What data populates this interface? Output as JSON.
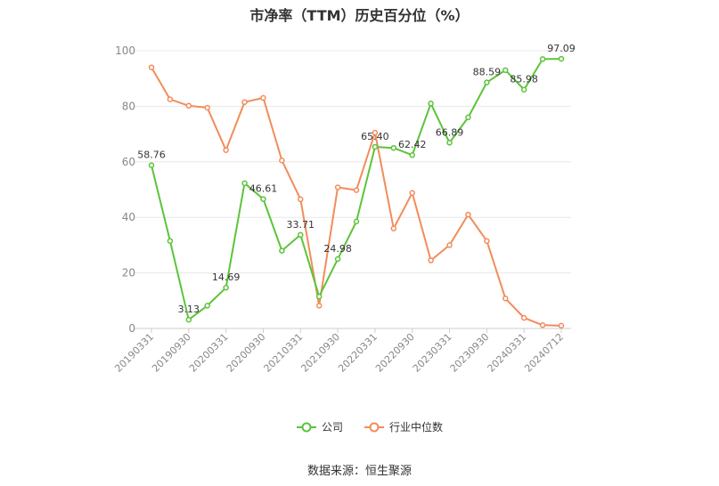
{
  "chart_data": {
    "type": "line",
    "title": "市净率（TTM）历史百分位（%）",
    "xlabel": "",
    "ylabel": "",
    "ylim": [
      0,
      100
    ],
    "yticks": [
      0,
      20,
      40,
      60,
      80,
      100
    ],
    "x": [
      "20190331",
      "20190630",
      "20190930",
      "20191231",
      "20200331",
      "20200630",
      "20200930",
      "20201231",
      "20210331",
      "20210630",
      "20210930",
      "20211231",
      "20220331",
      "20220630",
      "20220930",
      "20221231",
      "20230331",
      "20230630",
      "20230930",
      "20231231",
      "20240331",
      "20240630",
      "20240712"
    ],
    "xtick_labels": [
      "20190331",
      "20190930",
      "20200331",
      "20200930",
      "20210331",
      "20210930",
      "20220331",
      "20220930",
      "20230331",
      "20230930",
      "20240331",
      "20240712"
    ],
    "grid": true,
    "legend_position": "bottom",
    "series": [
      {
        "name": "公司",
        "color": "#5cc43a",
        "values": [
          58.76,
          31.5,
          3.13,
          8.2,
          14.69,
          52.3,
          46.61,
          28.0,
          33.71,
          11.5,
          24.98,
          38.5,
          65.4,
          65.0,
          62.42,
          81.0,
          66.89,
          76.0,
          88.59,
          93.0,
          85.98,
          97.0,
          97.09
        ],
        "data_labels": {
          "0": "58.76",
          "2": "3.13",
          "4": "14.69",
          "6": "46.61",
          "8": "33.71",
          "10": "24.98",
          "12": "65.40",
          "14": "62.42",
          "16": "66.89",
          "18": "88.59",
          "20": "85.98",
          "22": "97.09"
        }
      },
      {
        "name": "行业中位数",
        "color": "#f28c5a",
        "values": [
          94.0,
          82.5,
          80.2,
          79.5,
          64.2,
          81.5,
          83.0,
          60.5,
          46.5,
          8.2,
          50.8,
          49.8,
          70.5,
          36.0,
          48.8,
          24.5,
          30.0,
          41.0,
          31.5,
          10.8,
          3.8,
          1.2,
          1.0
        ],
        "data_labels": {}
      }
    ]
  },
  "footer": {
    "source": "数据来源：恒生聚源"
  }
}
